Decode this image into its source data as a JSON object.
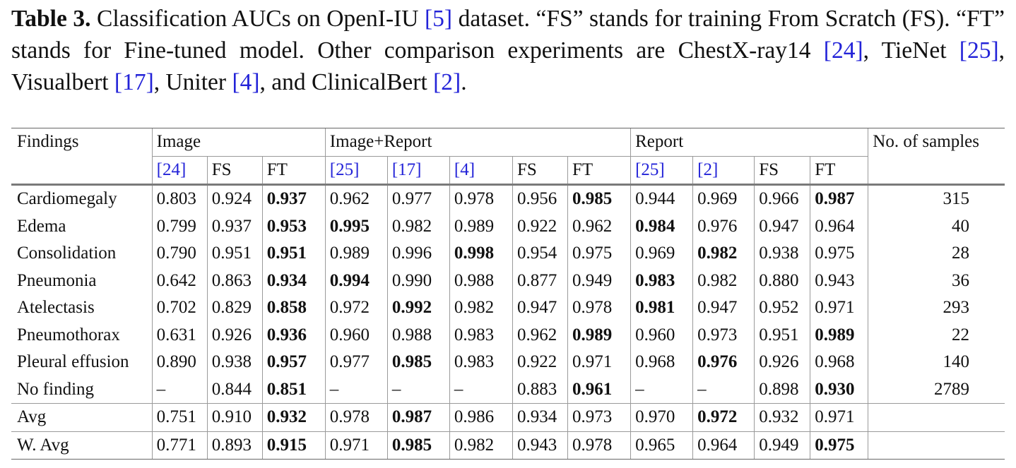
{
  "caption": {
    "label": "Table 3.",
    "part1": " Classification AUCs on OpenI-IU ",
    "ref_openi": "[5]",
    "part2": " dataset. “FS” stands for training From Scratch (FS). “FT” stands for Fine-tuned model. Other comparison experiments are ChestX-ray14 ",
    "ref_chestx": "[24]",
    "part3": ", TieNet ",
    "ref_tienet": "[25]",
    "part4": ", Visualbert ",
    "ref_visualbert": "[17]",
    "part5": ", Uniter ",
    "ref_uniter": "[4]",
    "part6": ", and ClinicalBert ",
    "ref_clinicalbert": "[2]",
    "part7": "."
  },
  "table": {
    "header": {
      "findings": "Findings",
      "image": "Image",
      "image_report": "Image+Report",
      "report": "Report",
      "samples": "No. of samples"
    },
    "subheader": [
      {
        "text": "[24]",
        "ref": true
      },
      {
        "text": "FS",
        "ref": false
      },
      {
        "text": "FT",
        "ref": false
      },
      {
        "text": "[25]",
        "ref": true
      },
      {
        "text": "[17]",
        "ref": true
      },
      {
        "text": "[4]",
        "ref": true
      },
      {
        "text": "FS",
        "ref": false
      },
      {
        "text": "FT",
        "ref": false
      },
      {
        "text": "[25]",
        "ref": true
      },
      {
        "text": "[2]",
        "ref": true
      },
      {
        "text": "FS",
        "ref": false
      },
      {
        "text": "FT",
        "ref": false
      }
    ],
    "rows": [
      {
        "finding": "Cardiomegaly",
        "values": [
          "0.803",
          "0.924",
          "0.937",
          "0.962",
          "0.977",
          "0.978",
          "0.956",
          "0.985",
          "0.944",
          "0.969",
          "0.966",
          "0.987"
        ],
        "bold": [
          2,
          7,
          11
        ],
        "samples": "315"
      },
      {
        "finding": "Edema",
        "values": [
          "0.799",
          "0.937",
          "0.953",
          "0.995",
          "0.982",
          "0.989",
          "0.922",
          "0.962",
          "0.984",
          "0.976",
          "0.947",
          "0.964"
        ],
        "bold": [
          2,
          3,
          8
        ],
        "samples": "40"
      },
      {
        "finding": "Consolidation",
        "values": [
          "0.790",
          "0.951",
          "0.951",
          "0.989",
          "0.996",
          "0.998",
          "0.954",
          "0.975",
          "0.969",
          "0.982",
          "0.938",
          "0.975"
        ],
        "bold": [
          2,
          5,
          9
        ],
        "samples": "28"
      },
      {
        "finding": "Pneumonia",
        "values": [
          "0.642",
          "0.863",
          "0.934",
          "0.994",
          "0.990",
          "0.988",
          "0.877",
          "0.949",
          "0.983",
          "0.982",
          "0.880",
          "0.943"
        ],
        "bold": [
          2,
          3,
          8
        ],
        "samples": "36"
      },
      {
        "finding": "Atelectasis",
        "values": [
          "0.702",
          "0.829",
          "0.858",
          "0.972",
          "0.992",
          "0.982",
          "0.947",
          "0.978",
          "0.981",
          "0.947",
          "0.952",
          "0.971"
        ],
        "bold": [
          2,
          4,
          8
        ],
        "samples": "293"
      },
      {
        "finding": "Pneumothorax",
        "values": [
          "0.631",
          "0.926",
          "0.936",
          "0.960",
          "0.988",
          "0.983",
          "0.962",
          "0.989",
          "0.960",
          "0.973",
          "0.951",
          "0.989"
        ],
        "bold": [
          2,
          7,
          11
        ],
        "samples": "22"
      },
      {
        "finding": "Pleural effusion",
        "values": [
          "0.890",
          "0.938",
          "0.957",
          "0.977",
          "0.985",
          "0.983",
          "0.922",
          "0.971",
          "0.968",
          "0.976",
          "0.926",
          "0.968"
        ],
        "bold": [
          2,
          4,
          9
        ],
        "samples": "140"
      },
      {
        "finding": "No finding",
        "values": [
          "–",
          "0.844",
          "0.851",
          "–",
          "–",
          "–",
          "0.883",
          "0.961",
          "–",
          "–",
          "0.898",
          "0.930"
        ],
        "bold": [
          2,
          7,
          11
        ],
        "samples": "2789"
      }
    ],
    "avg_rows": [
      {
        "finding": "Avg",
        "values": [
          "0.751",
          "0.910",
          "0.932",
          "0.978",
          "0.987",
          "0.986",
          "0.934",
          "0.973",
          "0.970",
          "0.972",
          "0.932",
          "0.971"
        ],
        "bold": [
          2,
          4,
          9
        ],
        "samples": ""
      },
      {
        "finding": "W. Avg",
        "values": [
          "0.771",
          "0.893",
          "0.915",
          "0.971",
          "0.985",
          "0.982",
          "0.943",
          "0.978",
          "0.965",
          "0.964",
          "0.949",
          "0.975"
        ],
        "bold": [
          2,
          4,
          11
        ],
        "samples": ""
      }
    ]
  }
}
